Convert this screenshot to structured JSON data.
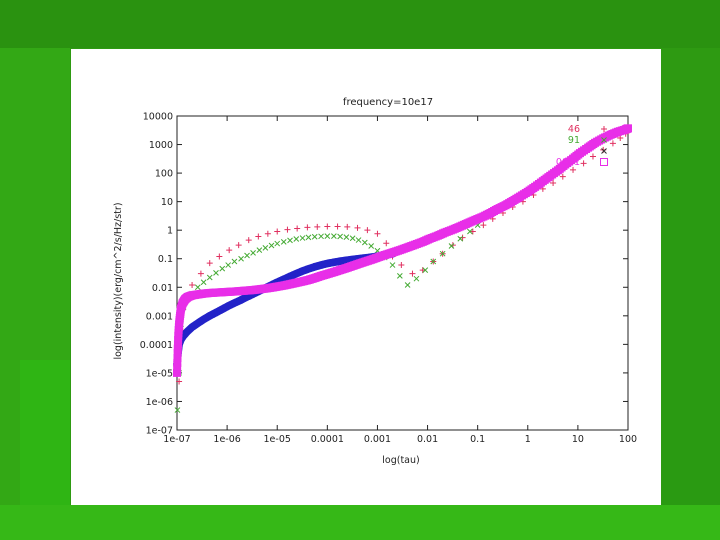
{
  "chart_data": {
    "type": "scatter",
    "title": "frequency=10e17",
    "xlabel": "log(tau)",
    "ylabel": "log(intensity)(erg/cm^2/s/Hz/str)",
    "x_scale": "log",
    "y_scale": "log",
    "xlim": [
      1e-07,
      100
    ],
    "ylim": [
      1e-07,
      10000
    ],
    "x_ticks": [
      "1e-07",
      "1e-06",
      "1e-05",
      "0.0001",
      "0.001",
      "0.01",
      "0.1",
      "1",
      "10",
      "100"
    ],
    "y_ticks": [
      "1e-07",
      "1e-06",
      "1e-05",
      "0.0001",
      "0.001",
      "0.01",
      "0.1",
      "1",
      "10",
      "100",
      "1000",
      "10000"
    ],
    "legend_position": "top-right",
    "series": [
      {
        "name": "46",
        "color": "#e03060",
        "marker": "plus",
        "points": [
          [
            1.1e-07,
            5e-06
          ],
          [
            1.3e-07,
            0.0003
          ],
          [
            1.6e-07,
            0.005
          ],
          [
            2e-07,
            0.012
          ],
          [
            3e-07,
            0.03
          ],
          [
            4.5e-07,
            0.07
          ],
          [
            7e-07,
            0.12
          ],
          [
            1.1e-06,
            0.2
          ],
          [
            1.7e-06,
            0.3
          ],
          [
            2.7e-06,
            0.45
          ],
          [
            4.2e-06,
            0.6
          ],
          [
            6.5e-06,
            0.75
          ],
          [
            1e-05,
            0.9
          ],
          [
            1.6e-05,
            1.05
          ],
          [
            2.5e-05,
            1.15
          ],
          [
            4e-05,
            1.25
          ],
          [
            6.3e-05,
            1.3
          ],
          [
            0.0001,
            1.35
          ],
          [
            0.00016,
            1.35
          ],
          [
            0.00025,
            1.3
          ],
          [
            0.0004,
            1.2
          ],
          [
            0.00063,
            1.0
          ],
          [
            0.001,
            0.75
          ],
          [
            0.0015,
            0.35
          ],
          [
            0.002,
            0.12
          ],
          [
            0.003,
            0.06
          ],
          [
            0.005,
            0.03
          ],
          [
            0.008,
            0.04
          ],
          [
            0.013,
            0.08
          ],
          [
            0.02,
            0.15
          ],
          [
            0.032,
            0.3
          ],
          [
            0.05,
            0.55
          ],
          [
            0.08,
            0.9
          ],
          [
            0.13,
            1.5
          ],
          [
            0.2,
            2.5
          ],
          [
            0.32,
            4
          ],
          [
            0.5,
            6.5
          ],
          [
            0.8,
            10
          ],
          [
            1.3,
            17
          ],
          [
            2,
            28
          ],
          [
            3.2,
            45
          ],
          [
            5,
            75
          ],
          [
            8,
            130
          ],
          [
            13,
            220
          ],
          [
            20,
            380
          ],
          [
            32,
            650
          ],
          [
            50,
            1100
          ],
          [
            70,
            1700
          ],
          [
            90,
            2400
          ]
        ]
      },
      {
        "name": "91",
        "color": "#44aa33",
        "marker": "x",
        "points": [
          [
            1.02e-07,
            5e-07
          ],
          [
            1.1e-07,
            1e-05
          ],
          [
            1.2e-07,
            0.0005
          ],
          [
            1.35e-07,
            0.002
          ],
          [
            1.6e-07,
            0.004
          ],
          [
            2e-07,
            0.006
          ],
          [
            2.6e-07,
            0.01
          ],
          [
            3.4e-07,
            0.015
          ],
          [
            4.5e-07,
            0.022
          ],
          [
            6e-07,
            0.032
          ],
          [
            8e-07,
            0.045
          ],
          [
            1.05e-06,
            0.06
          ],
          [
            1.4e-06,
            0.08
          ],
          [
            1.9e-06,
            0.1
          ],
          [
            2.5e-06,
            0.13
          ],
          [
            3.3e-06,
            0.16
          ],
          [
            4.4e-06,
            0.2
          ],
          [
            5.8e-06,
            0.24
          ],
          [
            7.7e-06,
            0.29
          ],
          [
            1e-05,
            0.34
          ],
          [
            1.35e-05,
            0.39
          ],
          [
            1.8e-05,
            0.44
          ],
          [
            2.4e-05,
            0.49
          ],
          [
            3.2e-05,
            0.53
          ],
          [
            4.2e-05,
            0.56
          ],
          [
            5.6e-05,
            0.59
          ],
          [
            7.5e-05,
            0.61
          ],
          [
            0.0001,
            0.62
          ],
          [
            0.000135,
            0.62
          ],
          [
            0.00018,
            0.6
          ],
          [
            0.00024,
            0.57
          ],
          [
            0.00032,
            0.52
          ],
          [
            0.00042,
            0.45
          ],
          [
            0.00056,
            0.37
          ],
          [
            0.00075,
            0.28
          ],
          [
            0.001,
            0.19
          ],
          [
            0.0014,
            0.11
          ],
          [
            0.002,
            0.06
          ],
          [
            0.0028,
            0.025
          ],
          [
            0.004,
            0.012
          ],
          [
            0.006,
            0.02
          ],
          [
            0.009,
            0.04
          ],
          [
            0.013,
            0.08
          ],
          [
            0.02,
            0.15
          ],
          [
            0.03,
            0.28
          ],
          [
            0.045,
            0.5
          ],
          [
            0.07,
            0.9
          ],
          [
            0.1,
            1.5
          ]
        ]
      },
      {
        "name": "",
        "color": "#2323c8",
        "marker": "star",
        "points": [
          [
            1e-07,
            2e-05
          ],
          [
            1.05e-07,
            5e-05
          ],
          [
            1.1e-07,
            0.0001
          ],
          [
            1.2e-07,
            0.00015
          ],
          [
            1.35e-07,
            0.0002
          ],
          [
            1.6e-07,
            0.00028
          ],
          [
            2e-07,
            0.0004
          ],
          [
            2.6e-07,
            0.00055
          ],
          [
            3.4e-07,
            0.00075
          ],
          [
            4.5e-07,
            0.001
          ],
          [
            6e-07,
            0.0013
          ],
          [
            8e-07,
            0.0017
          ],
          [
            1.05e-06,
            0.0022
          ],
          [
            1.4e-06,
            0.0028
          ],
          [
            1.9e-06,
            0.0036
          ],
          [
            2.5e-06,
            0.0046
          ],
          [
            3.3e-06,
            0.0058
          ],
          [
            4.4e-06,
            0.0074
          ],
          [
            5.8e-06,
            0.0094
          ],
          [
            7.7e-06,
            0.012
          ],
          [
            1e-05,
            0.015
          ],
          [
            1.35e-05,
            0.019
          ],
          [
            1.8e-05,
            0.024
          ],
          [
            2.4e-05,
            0.03
          ],
          [
            3.2e-05,
            0.037
          ],
          [
            4.2e-05,
            0.044
          ],
          [
            5.6e-05,
            0.052
          ],
          [
            7.5e-05,
            0.06
          ],
          [
            0.0001,
            0.068
          ],
          [
            0.000135,
            0.075
          ],
          [
            0.00018,
            0.082
          ],
          [
            0.00024,
            0.088
          ],
          [
            0.00032,
            0.094
          ],
          [
            0.00042,
            0.1
          ],
          [
            0.00056,
            0.106
          ],
          [
            0.00075,
            0.113
          ],
          [
            0.001,
            0.122
          ],
          [
            0.0014,
            0.134
          ],
          [
            0.002,
            0.15
          ]
        ]
      },
      {
        "name": "0001",
        "color": "#e82ee8",
        "marker": "square",
        "points": [
          [
            1e-07,
            1e-05
          ],
          [
            1.03e-07,
            5e-05
          ],
          [
            1.06e-07,
            0.0002
          ],
          [
            1.1e-07,
            0.0005
          ],
          [
            1.15e-07,
            0.001
          ],
          [
            1.2e-07,
            0.0018
          ],
          [
            1.3e-07,
            0.0028
          ],
          [
            1.45e-07,
            0.0038
          ],
          [
            1.65e-07,
            0.0046
          ],
          [
            2e-07,
            0.0052
          ],
          [
            2.6e-07,
            0.0056
          ],
          [
            3.4e-07,
            0.006
          ],
          [
            4.5e-07,
            0.0063
          ],
          [
            6e-07,
            0.0065
          ],
          [
            8e-07,
            0.0067
          ],
          [
            1.05e-06,
            0.0069
          ],
          [
            1.4e-06,
            0.0071
          ],
          [
            1.9e-06,
            0.0074
          ],
          [
            2.5e-06,
            0.0077
          ],
          [
            3.3e-06,
            0.008
          ],
          [
            4.4e-06,
            0.0085
          ],
          [
            5.8e-06,
            0.009
          ],
          [
            7.7e-06,
            0.0097
          ],
          [
            1e-05,
            0.0105
          ],
          [
            1.35e-05,
            0.0115
          ],
          [
            1.8e-05,
            0.0128
          ],
          [
            2.4e-05,
            0.0143
          ],
          [
            3.2e-05,
            0.016
          ],
          [
            4.2e-05,
            0.018
          ],
          [
            5.6e-05,
            0.021
          ],
          [
            7.5e-05,
            0.025
          ],
          [
            0.0001,
            0.029
          ],
          [
            0.000135,
            0.034
          ],
          [
            0.00018,
            0.04
          ],
          [
            0.00024,
            0.047
          ],
          [
            0.00032,
            0.056
          ],
          [
            0.00042,
            0.066
          ],
          [
            0.00056,
            0.078
          ],
          [
            0.00075,
            0.092
          ],
          [
            0.001,
            0.11
          ],
          [
            0.0014,
            0.135
          ],
          [
            0.002,
            0.165
          ],
          [
            0.0028,
            0.2
          ],
          [
            0.004,
            0.25
          ],
          [
            0.0056,
            0.31
          ],
          [
            0.008,
            0.39
          ],
          [
            0.011,
            0.5
          ],
          [
            0.016,
            0.64
          ],
          [
            0.022,
            0.82
          ],
          [
            0.032,
            1.05
          ],
          [
            0.045,
            1.35
          ],
          [
            0.063,
            1.75
          ],
          [
            0.09,
            2.3
          ],
          [
            0.13,
            3.0
          ],
          [
            0.18,
            4.0
          ],
          [
            0.25,
            5.5
          ],
          [
            0.36,
            7.5
          ],
          [
            0.5,
            10.5
          ],
          [
            0.7,
            15
          ],
          [
            1,
            22
          ],
          [
            1.4,
            33
          ],
          [
            2,
            52
          ],
          [
            2.8,
            80
          ],
          [
            4,
            125
          ],
          [
            5.6,
            200
          ],
          [
            8,
            320
          ],
          [
            11,
            500
          ],
          [
            16,
            780
          ],
          [
            22,
            1150
          ],
          [
            32,
            1650
          ],
          [
            45,
            2200
          ],
          [
            63,
            2800
          ],
          [
            90,
            3400
          ],
          [
            100,
            3700
          ]
        ]
      }
    ]
  }
}
